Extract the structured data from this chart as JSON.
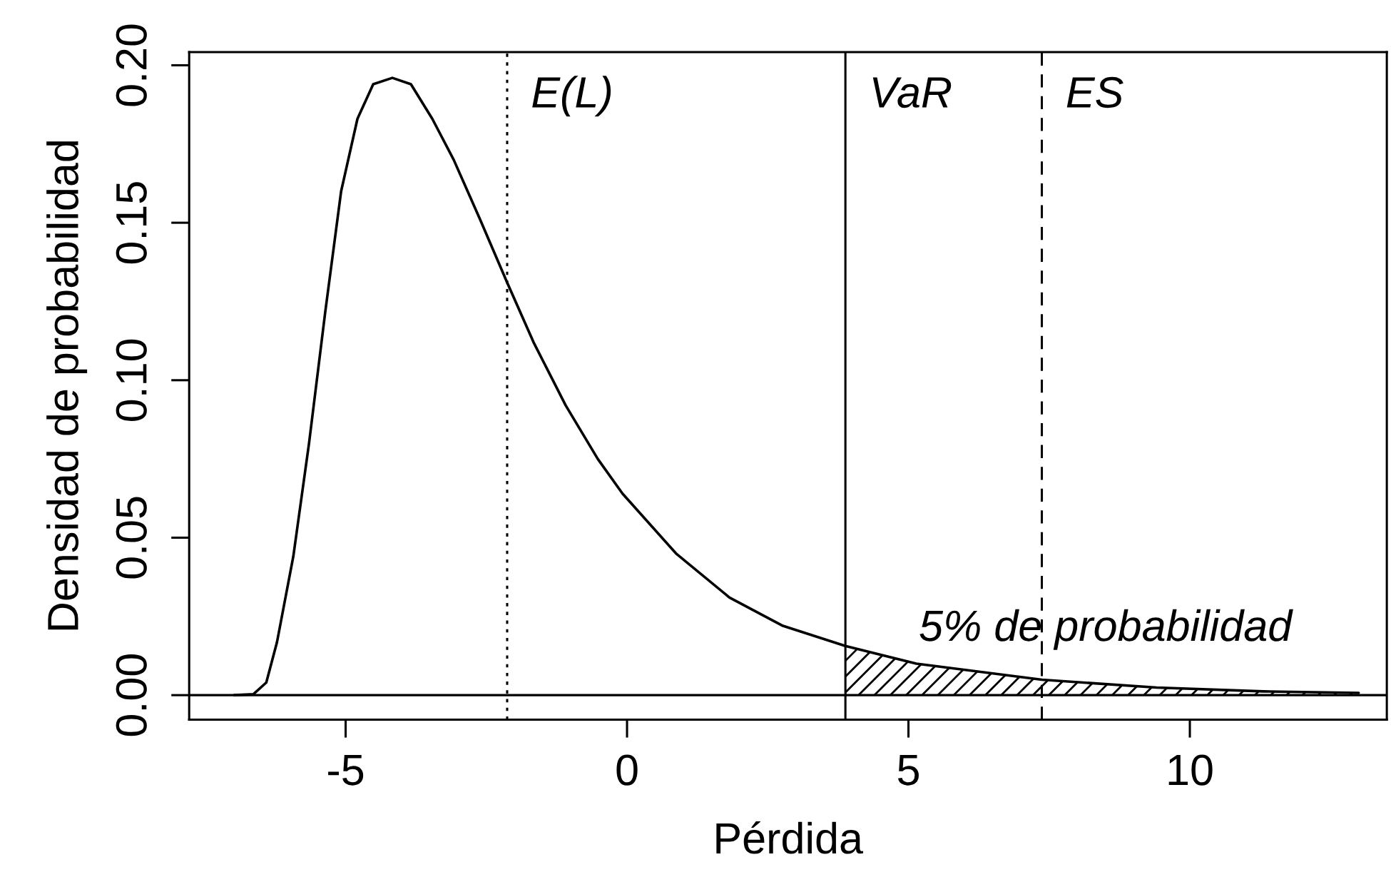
{
  "chart_data": {
    "type": "line",
    "xlabel": "Pérdida",
    "ylabel": "Densidad de probabilidad",
    "series": [
      {
        "color": "#000000",
        "x": [
          -6.98,
          -6.64,
          -6.41,
          -6.22,
          -5.93,
          -5.65,
          -5.36,
          -5.08,
          -4.79,
          -4.51,
          -4.17,
          -3.84,
          -3.46,
          -3.08,
          -2.61,
          -2.13,
          -1.66,
          -1.09,
          -0.52,
          -0.08,
          0.87,
          1.82,
          2.77,
          3.88,
          5.14,
          7.37,
          9.41,
          11.31,
          13.0
        ],
        "values": [
          0.0,
          0.0003,
          0.004,
          0.0168,
          0.044,
          0.08,
          0.122,
          0.16,
          0.183,
          0.194,
          0.196,
          0.194,
          0.183,
          0.17,
          0.151,
          0.131,
          0.112,
          0.092,
          0.075,
          0.064,
          0.045,
          0.031,
          0.022,
          0.0156,
          0.01,
          0.0049,
          0.0024,
          0.0012,
          0.0007
        ]
      },
      {
        "type": "area",
        "color": "#000000",
        "x": [
          3.88,
          5.14,
          7.37,
          9.41,
          11.31,
          13.0
        ],
        "values": [
          0.0156,
          0.01,
          0.0049,
          0.0024,
          0.0012,
          0.0007
        ]
      }
    ],
    "xlim": [
      -7.78,
      13.5
    ],
    "xticks": [
      -5,
      0,
      5,
      10
    ],
    "ylim": [
      -0.0078,
      0.2042
    ],
    "yticks": [
      {
        "value": 0,
        "label": "0.00"
      },
      {
        "value": 0.05,
        "label": "0.05"
      },
      {
        "value": 0.1,
        "label": "0.10"
      },
      {
        "value": 0.15,
        "label": "0.15"
      },
      {
        "value": 0.2,
        "label": "0.20"
      }
    ],
    "ref_lines": [
      {
        "axis": "x",
        "value": -2.13,
        "label": "E(L)",
        "line_style": "dotted"
      },
      {
        "axis": "x",
        "value": 3.88,
        "label": "VaR",
        "line_style": "solid"
      },
      {
        "axis": "x",
        "value": 7.37,
        "label": "ES",
        "line_style": "dashed"
      },
      {
        "axis": "y",
        "value": 0,
        "line_style": "solid"
      }
    ],
    "annotations": [
      "5% de probabilidad"
    ],
    "grid": false,
    "legend": false
  }
}
